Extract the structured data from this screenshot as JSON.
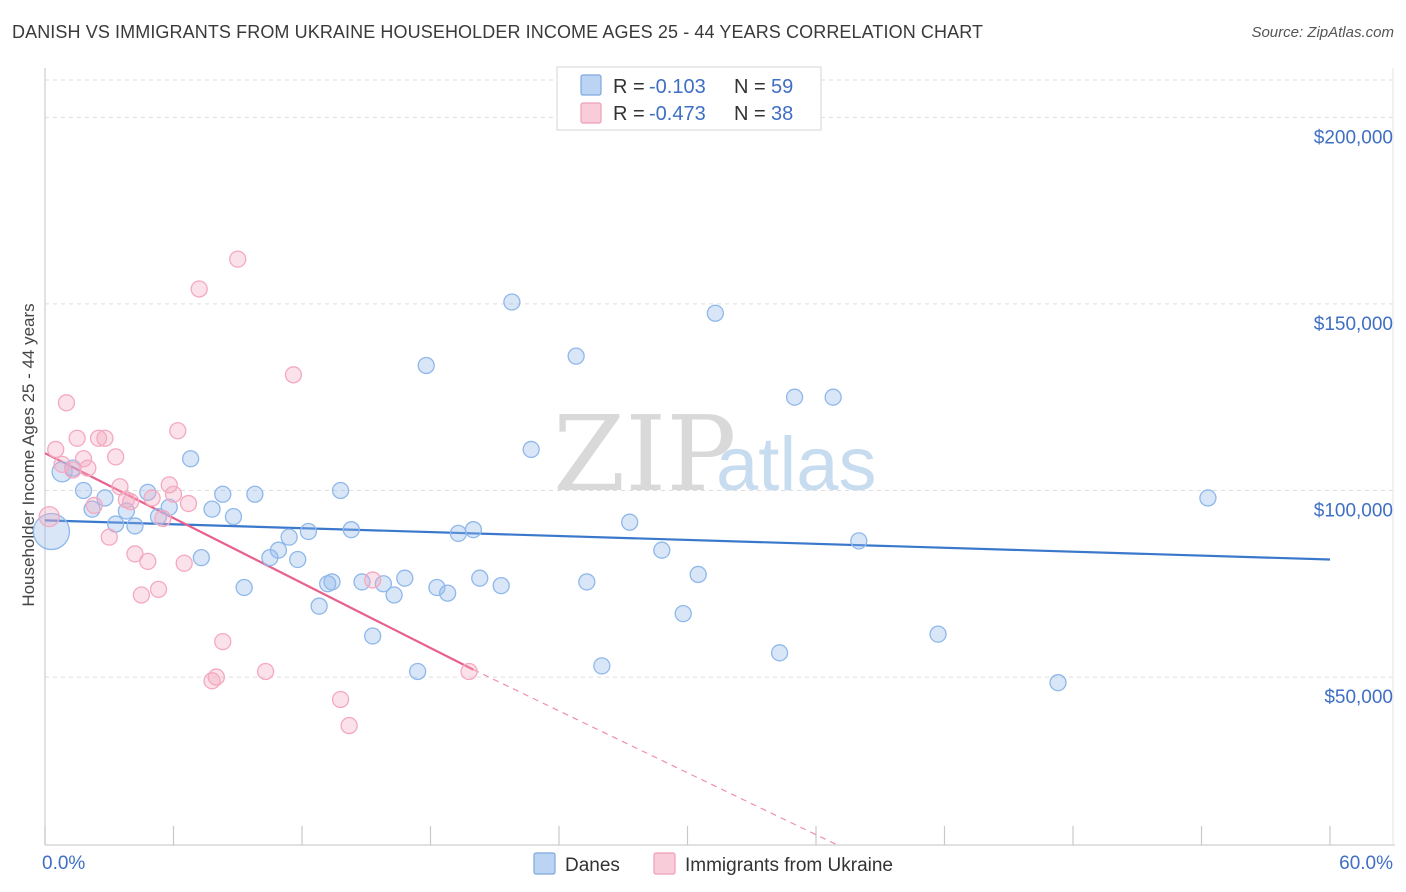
{
  "title": "DANISH VS IMMIGRANTS FROM UKRAINE HOUSEHOLDER INCOME AGES 25 - 44 YEARS CORRELATION CHART",
  "source": "Source: ZipAtlas.com",
  "watermark": {
    "zip": "ZIP",
    "atlas": "atlas"
  },
  "legend": {
    "r_label": "R =",
    "n_label": "N =",
    "rows": [
      {
        "r": "-0.103",
        "n": "59"
      },
      {
        "r": "-0.473",
        "n": "38"
      }
    ]
  },
  "chart_data": {
    "type": "scatter",
    "title": "DANISH VS IMMIGRANTS FROM UKRAINE HOUSEHOLDER INCOME AGES 25 - 44 YEARS CORRELATION CHART",
    "xlabel": "",
    "ylabel": "Householder Income Ages 25 - 44 years",
    "xlim": [
      0,
      60
    ],
    "ylim": [
      5000,
      210000
    ],
    "x_tick_labels": [
      {
        "value": 0,
        "label": "0.0%"
      },
      {
        "value": 60,
        "label": "60.0%"
      }
    ],
    "y_ticks": [
      {
        "value": 50000,
        "label": "$50,000"
      },
      {
        "value": 100000,
        "label": "$100,000"
      },
      {
        "value": 150000,
        "label": "$150,000"
      },
      {
        "value": 200000,
        "label": "$200,000"
      }
    ],
    "grid": true,
    "series": [
      {
        "name": "Danes",
        "color": "#8fb8ea",
        "line_color": "#3a78cc",
        "r": -0.103,
        "n": 59,
        "trend": {
          "x0": 0,
          "y0": 92000,
          "x1": 60,
          "y1": 81500,
          "dash_to": null
        },
        "points": [
          [
            0.3,
            89000,
            18
          ],
          [
            0.8,
            105000,
            10
          ],
          [
            1.3,
            106000,
            8
          ],
          [
            1.8,
            100000,
            8
          ],
          [
            2.2,
            95000,
            8
          ],
          [
            2.8,
            98000,
            8
          ],
          [
            3.3,
            91000,
            8
          ],
          [
            3.8,
            94500,
            8
          ],
          [
            4.2,
            90500,
            8
          ],
          [
            4.8,
            99500,
            8
          ],
          [
            5.3,
            93000,
            8
          ],
          [
            5.8,
            95500,
            8
          ],
          [
            6.8,
            108500,
            8
          ],
          [
            7.3,
            82000,
            8
          ],
          [
            7.8,
            95000,
            8
          ],
          [
            8.3,
            99000,
            8
          ],
          [
            8.8,
            93000,
            8
          ],
          [
            9.3,
            74000,
            8
          ],
          [
            9.8,
            99000,
            8
          ],
          [
            10.5,
            82000,
            8
          ],
          [
            10.9,
            84000,
            8
          ],
          [
            11.4,
            87500,
            8
          ],
          [
            11.8,
            81500,
            8
          ],
          [
            12.3,
            89000,
            8
          ],
          [
            12.8,
            69000,
            8
          ],
          [
            13.4,
            75500,
            8
          ],
          [
            13.8,
            100000,
            8
          ],
          [
            14.3,
            89500,
            8
          ],
          [
            14.8,
            75500,
            8
          ],
          [
            15.3,
            61000,
            8
          ],
          [
            15.8,
            75000,
            8
          ],
          [
            16.3,
            72000,
            8
          ],
          [
            16.8,
            76500,
            8
          ],
          [
            17.4,
            51500,
            8
          ],
          [
            17.8,
            133500,
            8
          ],
          [
            18.3,
            74000,
            8
          ],
          [
            18.8,
            72500,
            8
          ],
          [
            19.3,
            88500,
            8
          ],
          [
            20.0,
            89500,
            8
          ],
          [
            20.3,
            76500,
            8
          ],
          [
            21.3,
            74500,
            8
          ],
          [
            21.8,
            150500,
            8
          ],
          [
            22.7,
            111000,
            8
          ],
          [
            24.8,
            136000,
            8
          ],
          [
            25.3,
            75500,
            8
          ],
          [
            26.0,
            53000,
            8
          ],
          [
            27.3,
            91500,
            8
          ],
          [
            28.8,
            84000,
            8
          ],
          [
            29.8,
            67000,
            8
          ],
          [
            30.5,
            77500,
            8
          ],
          [
            31.3,
            147500,
            8
          ],
          [
            34.3,
            56500,
            8
          ],
          [
            35.0,
            125000,
            8
          ],
          [
            36.8,
            125000,
            8
          ],
          [
            38.0,
            86500,
            8
          ],
          [
            41.7,
            61500,
            8
          ],
          [
            47.3,
            48500,
            8
          ],
          [
            54.3,
            98000,
            8
          ],
          [
            13.2,
            75000,
            8
          ]
        ]
      },
      {
        "name": "Immigrants from Ukraine",
        "color": "#f4a9c0",
        "line_color": "#e8608c",
        "r": -0.473,
        "n": 38,
        "trend": {
          "x0": 0,
          "y0": 110000,
          "x1": 20,
          "y1": 52000,
          "dash_to": [
            37,
            5000
          ]
        },
        "points": [
          [
            0.2,
            93000,
            10
          ],
          [
            0.5,
            111000,
            8
          ],
          [
            0.8,
            107000,
            8
          ],
          [
            1.0,
            123500,
            8
          ],
          [
            1.3,
            105500,
            8
          ],
          [
            1.5,
            114000,
            8
          ],
          [
            1.8,
            108500,
            8
          ],
          [
            2.0,
            106000,
            8
          ],
          [
            2.3,
            96000,
            8
          ],
          [
            2.5,
            114000,
            8
          ],
          [
            2.8,
            114000,
            8
          ],
          [
            3.0,
            87500,
            8
          ],
          [
            3.3,
            109000,
            8
          ],
          [
            3.5,
            101000,
            8
          ],
          [
            3.8,
            97500,
            8
          ],
          [
            4.0,
            97000,
            8
          ],
          [
            4.2,
            83000,
            8
          ],
          [
            4.5,
            72000,
            8
          ],
          [
            4.8,
            81000,
            8
          ],
          [
            5.0,
            98000,
            8
          ],
          [
            5.3,
            73500,
            8
          ],
          [
            5.5,
            92500,
            8
          ],
          [
            5.8,
            101500,
            8
          ],
          [
            6.0,
            99000,
            8
          ],
          [
            6.2,
            116000,
            8
          ],
          [
            6.5,
            80500,
            8
          ],
          [
            6.7,
            96500,
            8
          ],
          [
            7.2,
            154000,
            8
          ],
          [
            7.8,
            49000,
            8
          ],
          [
            8.0,
            50000,
            8
          ],
          [
            8.3,
            59500,
            8
          ],
          [
            9.0,
            162000,
            8
          ],
          [
            10.3,
            51500,
            8
          ],
          [
            11.6,
            131000,
            8
          ],
          [
            13.8,
            44000,
            8
          ],
          [
            14.2,
            37000,
            8
          ],
          [
            15.3,
            76000,
            8
          ],
          [
            19.8,
            51500,
            8
          ]
        ]
      }
    ]
  },
  "bottom_legend": [
    {
      "label": "Danes"
    },
    {
      "label": "Immigrants from Ukraine"
    }
  ]
}
